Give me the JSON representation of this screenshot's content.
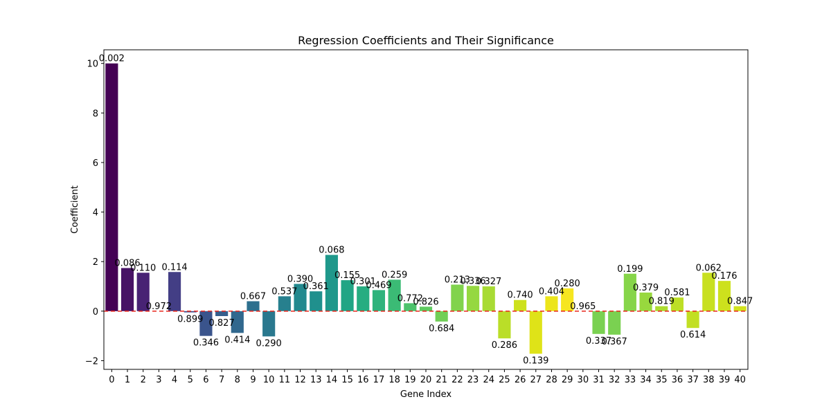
{
  "chart_data": {
    "type": "bar",
    "title": "Regression Coefficients and Their Significance",
    "xlabel": "Gene Index",
    "ylabel": "Coefficient",
    "ylim": [
      -2.35,
      10.55
    ],
    "yticks": [
      -2,
      0,
      2,
      4,
      6,
      8,
      10
    ],
    "ytick_labels": [
      "−2",
      "0",
      "2",
      "4",
      "6",
      "8",
      "10"
    ],
    "grid": false,
    "reference_line": {
      "y": 0,
      "color": "#e8251b",
      "style": "dashed"
    },
    "categories": [
      "0",
      "1",
      "2",
      "3",
      "4",
      "5",
      "6",
      "7",
      "8",
      "9",
      "10",
      "11",
      "12",
      "13",
      "14",
      "15",
      "16",
      "17",
      "18",
      "19",
      "20",
      "21",
      "22",
      "23",
      "24",
      "25",
      "26",
      "27",
      "28",
      "29",
      "30",
      "31",
      "32",
      "33",
      "34",
      "35",
      "36",
      "37",
      "38",
      "39",
      "40"
    ],
    "values": [
      10.0,
      1.74,
      1.55,
      0.0,
      1.58,
      -0.05,
      -1.0,
      -0.2,
      -0.88,
      0.4,
      -1.02,
      0.6,
      1.1,
      0.8,
      2.27,
      1.25,
      1.0,
      0.85,
      1.27,
      0.32,
      0.18,
      -0.42,
      1.07,
      1.02,
      1.0,
      -1.1,
      0.45,
      -1.72,
      0.6,
      0.92,
      0.0,
      -0.92,
      -0.95,
      1.51,
      0.75,
      0.2,
      0.55,
      -0.68,
      1.55,
      1.22,
      0.2
    ],
    "p_value_labels": [
      "0.002",
      "0.086",
      "0.110",
      "0.972",
      "0.114",
      "0.899",
      "0.346",
      "0.827",
      "0.414",
      "0.667",
      "0.290",
      "0.537",
      "0.390",
      "0.361",
      "0.068",
      "0.155",
      "0.301",
      "0.469",
      "0.259",
      "0.772",
      "0.826",
      "0.684",
      "0.213",
      "0.336",
      "0.327",
      "0.286",
      "0.740",
      "0.139",
      "0.404",
      "0.280",
      "0.965",
      "0.337",
      "0.367",
      "0.199",
      "0.379",
      "0.819",
      "0.581",
      "0.614",
      "0.062",
      "0.176",
      "0.847"
    ],
    "colors": [
      "#440154",
      "#471365",
      "#482374",
      "#46317e",
      "#433e85",
      "#3e4c8a",
      "#3a548c",
      "#355f8d",
      "#31688e",
      "#2d708e",
      "#2a788e",
      "#27808e",
      "#23898e",
      "#20908d",
      "#1f988b",
      "#21a585",
      "#26ad81",
      "#2eb37c",
      "#3bbb75",
      "#4cc26c",
      "#60ca60",
      "#71cf57",
      "#81d34d",
      "#95d840",
      "#a8db34",
      "#bade28",
      "#cde11d",
      "#dfe318",
      "#ece51b",
      "#f6e620",
      "#fde725",
      "#7ad151",
      "#7ad151",
      "#86d549",
      "#98d83e",
      "#addc30",
      "#bddf26",
      "#c2df23",
      "#c8e020",
      "#cde11d",
      "#d2e21b"
    ]
  }
}
